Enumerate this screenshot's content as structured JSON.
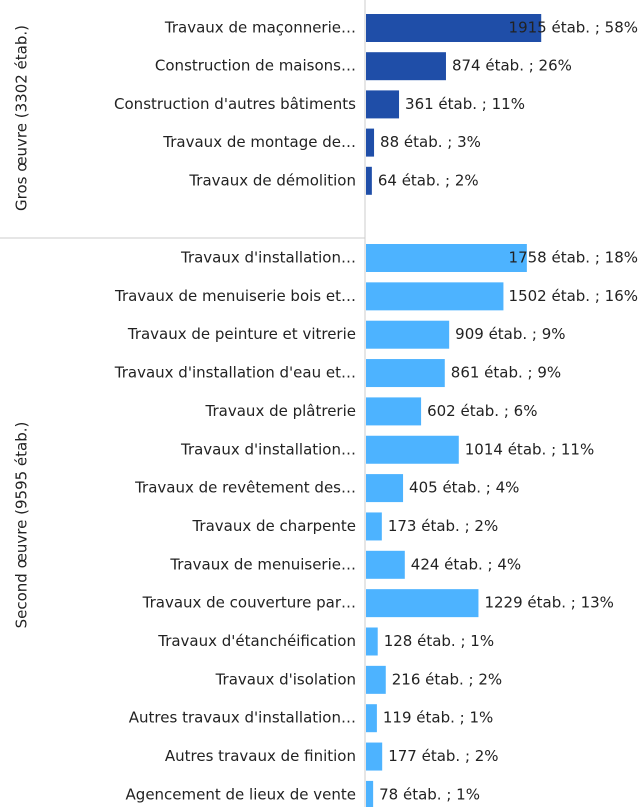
{
  "chart_data": {
    "type": "bar",
    "groups": [
      {
        "name": "Gros œuvre (3302 étab.)",
        "color": "#1f4ea8",
        "categories": [
          "Travaux de maçonnerie…",
          "Construction de maisons…",
          "Construction d'autres bâtiments",
          "Travaux de montage de…",
          "Travaux de démolition"
        ],
        "values": [
          1915,
          874,
          361,
          88,
          64
        ],
        "value_labels": [
          "1915 étab. ; 58%",
          "874 étab. ; 26%",
          "361 étab. ; 11%",
          "88 étab. ; 3%",
          "64 étab. ; 2%"
        ]
      },
      {
        "name": "Second œuvre (9595 étab.)",
        "color": "#4db3ff",
        "categories": [
          "Travaux d'installation…",
          "Travaux de menuiserie bois et…",
          "Travaux de peinture et vitrerie",
          "Travaux d'installation d'eau et…",
          "Travaux de plâtrerie",
          "Travaux d'installation…",
          "Travaux de revêtement des…",
          "Travaux de charpente",
          "Travaux de menuiserie…",
          "Travaux de couverture par…",
          "Travaux d'étanchéification",
          "Travaux d'isolation",
          "Autres travaux d'installation…",
          "Autres travaux de finition",
          "Agencement de lieux de vente"
        ],
        "values": [
          1758,
          1502,
          909,
          861,
          602,
          1014,
          405,
          173,
          424,
          1229,
          128,
          216,
          119,
          177,
          78
        ],
        "value_labels": [
          "1758 étab. ; 18%",
          "1502 étab. ; 16%",
          "909 étab. ; 9%",
          "861 étab. ; 9%",
          "602 étab. ; 6%",
          "1014 étab. ; 11%",
          "405 étab. ; 4%",
          "173 étab. ; 2%",
          "424 étab. ; 4%",
          "1229 étab. ; 13%",
          "128 étab. ; 1%",
          "216 étab. ; 2%",
          "119 étab. ; 1%",
          "177 étab. ; 2%",
          "78 étab. ; 1%"
        ]
      }
    ]
  }
}
